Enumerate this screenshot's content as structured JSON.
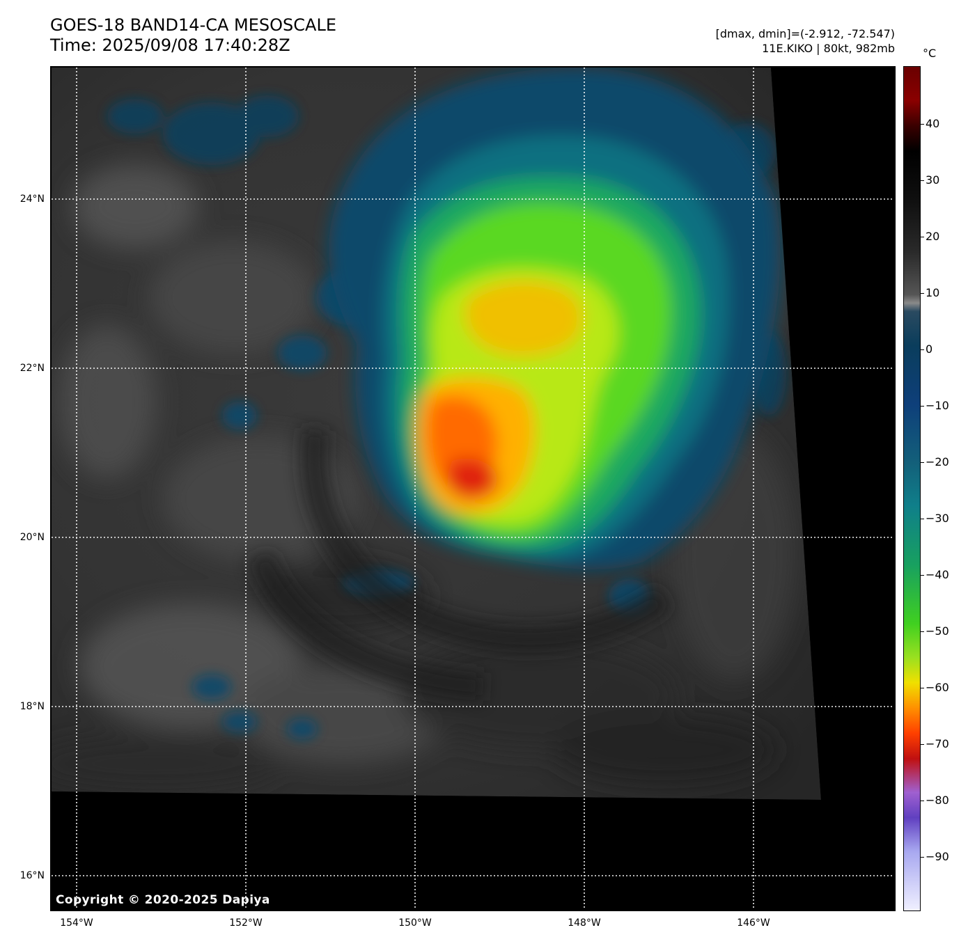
{
  "header": {
    "title_line1": "GOES-18 BAND14-CA MESOSCALE",
    "title_line2": "Time: 2025/09/08 17:40:28Z",
    "range_text": "[dmax, dmin]=(-2.912, -72.547)",
    "storm_text": "11E.KIKO | 80kt, 982mb"
  },
  "map": {
    "copyright": "Copyright © 2020-2025 Dapiya",
    "lat_labels": [
      "24°N",
      "22°N",
      "20°N",
      "18°N",
      "16°N"
    ],
    "lon_labels": [
      "154°W",
      "152°W",
      "150°W",
      "148°W",
      "146°W"
    ]
  },
  "colorbar": {
    "unit": "°C",
    "ticks": [
      "40",
      "30",
      "20",
      "10",
      "0",
      "−10",
      "−20",
      "−30",
      "−40",
      "−50",
      "−60",
      "−70",
      "−80",
      "−90"
    ]
  }
}
